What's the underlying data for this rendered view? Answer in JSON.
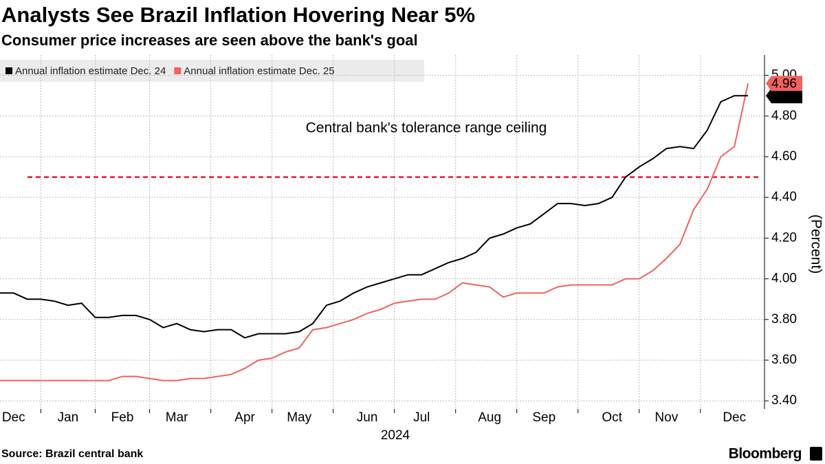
{
  "chart_data": {
    "type": "line",
    "title": "Analysts See Brazil Inflation Hovering Near 5%",
    "subtitle": "Consumer price increases are seen above the bank's goal",
    "y_label": "(Percent)",
    "x_label": "2024",
    "source": "Source: Brazil central bank",
    "brand": "Bloomberg",
    "categories": [
      null,
      "Dec",
      null,
      null,
      null,
      "Jan",
      null,
      null,
      null,
      "Feb",
      null,
      null,
      null,
      "Mar",
      null,
      null,
      null,
      null,
      "Apr",
      null,
      null,
      null,
      "May",
      null,
      null,
      null,
      null,
      "Jun",
      null,
      null,
      null,
      "Jul",
      null,
      null,
      null,
      null,
      "Aug",
      null,
      null,
      null,
      "Sep",
      null,
      null,
      null,
      null,
      "Oct",
      null,
      null,
      null,
      "Nov",
      null,
      null,
      null,
      null,
      "Dec",
      null
    ],
    "series": [
      {
        "name": "Annual inflation estimate Dec. 24",
        "color": "#000000",
        "values": [
          3.93,
          3.93,
          3.9,
          3.9,
          3.89,
          3.87,
          3.88,
          3.81,
          3.81,
          3.82,
          3.82,
          3.8,
          3.76,
          3.78,
          3.75,
          3.74,
          3.75,
          3.75,
          3.71,
          3.73,
          3.73,
          3.73,
          3.74,
          3.78,
          3.87,
          3.89,
          3.93,
          3.96,
          3.98,
          4.0,
          4.02,
          4.02,
          4.05,
          4.08,
          4.1,
          4.13,
          4.2,
          4.22,
          4.25,
          4.27,
          4.32,
          4.37,
          4.37,
          4.36,
          4.37,
          4.4,
          4.5,
          4.55,
          4.59,
          4.64,
          4.65,
          4.64,
          4.73,
          4.87,
          4.9,
          4.9
        ],
        "value_labels": [
          null,
          null,
          null,
          null,
          null,
          null,
          null,
          null,
          null,
          null,
          null,
          null,
          null,
          null,
          null,
          null,
          null,
          null,
          null,
          null,
          null,
          null,
          null,
          null,
          null,
          null,
          null,
          null,
          null,
          null,
          null,
          null,
          null,
          null,
          null,
          null,
          null,
          null,
          null,
          null,
          null,
          null,
          null,
          null,
          null,
          null,
          null,
          null,
          null,
          null,
          null,
          null,
          null,
          null,
          null,
          "4.90"
        ]
      },
      {
        "name": "Annual inflation estimate Dec. 25",
        "color": "#f0625f",
        "values": [
          3.5,
          3.5,
          3.5,
          3.5,
          3.5,
          3.5,
          3.5,
          3.5,
          3.5,
          3.52,
          3.52,
          3.51,
          3.5,
          3.5,
          3.51,
          3.51,
          3.52,
          3.53,
          3.56,
          3.6,
          3.61,
          3.64,
          3.66,
          3.75,
          3.76,
          3.78,
          3.8,
          3.83,
          3.85,
          3.88,
          3.89,
          3.9,
          3.9,
          3.93,
          3.98,
          3.97,
          3.96,
          3.91,
          3.93,
          3.93,
          3.93,
          3.96,
          3.97,
          3.97,
          3.97,
          3.97,
          4.0,
          4.0,
          4.04,
          4.1,
          4.17,
          4.34,
          4.44,
          4.6,
          4.65,
          4.96
        ],
        "value_labels": [
          null,
          null,
          null,
          null,
          null,
          null,
          null,
          null,
          null,
          null,
          null,
          null,
          null,
          null,
          null,
          null,
          null,
          null,
          null,
          null,
          null,
          null,
          null,
          null,
          null,
          null,
          null,
          null,
          null,
          null,
          null,
          null,
          null,
          null,
          null,
          null,
          null,
          null,
          null,
          null,
          null,
          null,
          null,
          null,
          null,
          null,
          null,
          null,
          null,
          null,
          null,
          null,
          null,
          null,
          null,
          "4.96"
        ]
      }
    ],
    "reference_line": {
      "value": 4.5,
      "label": "Central bank's tolerance range ceiling",
      "color": "#e8192c"
    },
    "ylim": [
      3.36,
      5.1
    ],
    "yticks": [
      {
        "value": 3.4,
        "label": "3.40"
      },
      {
        "value": 3.6,
        "label": "3.60"
      },
      {
        "value": 3.8,
        "label": "3.80"
      },
      {
        "value": 4.0,
        "label": "4.00"
      },
      {
        "value": 4.2,
        "label": "4.20"
      },
      {
        "value": 4.4,
        "label": "4.40"
      },
      {
        "value": 4.6,
        "label": "4.60"
      },
      {
        "value": 4.8,
        "label": "4.80"
      },
      {
        "value": 5.0,
        "label": "5.00"
      }
    ],
    "grid": true
  }
}
